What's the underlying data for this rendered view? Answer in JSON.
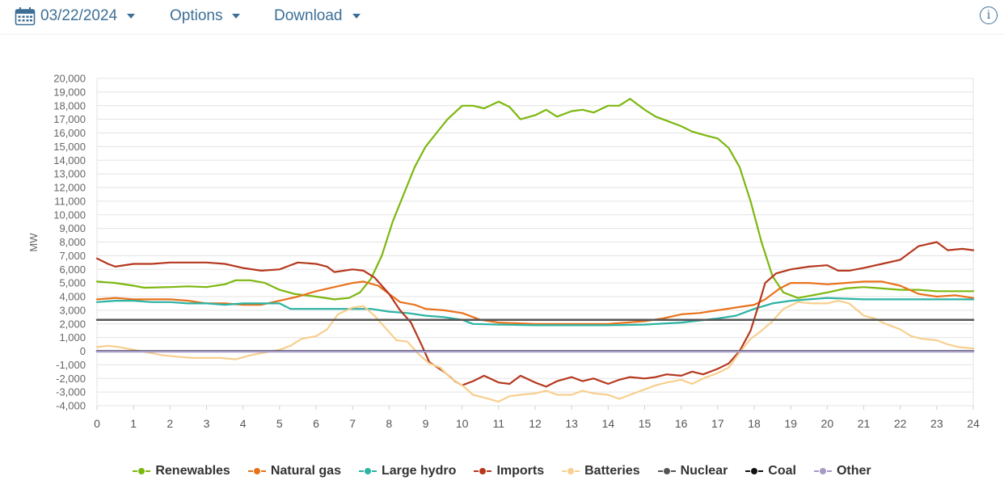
{
  "toolbar": {
    "date": "03/22/2024",
    "options_label": "Options",
    "download_label": "Download",
    "info_icon": "info-icon",
    "calendar_icon": "calendar-icon"
  },
  "chart_data": {
    "type": "line",
    "ylabel": "MW",
    "xlabel": "",
    "xlim": [
      0,
      24
    ],
    "ylim": [
      -4000,
      20000
    ],
    "x_ticks": [
      "0",
      "1",
      "2",
      "3",
      "4",
      "5",
      "6",
      "7",
      "8",
      "9",
      "10",
      "11",
      "12",
      "13",
      "14",
      "15",
      "16",
      "17",
      "18",
      "19",
      "20",
      "21",
      "22",
      "23",
      "24"
    ],
    "y_ticks": [
      "20,000",
      "19,000",
      "18,000",
      "17,000",
      "16,000",
      "15,000",
      "14,000",
      "13,000",
      "12,000",
      "11,000",
      "10,000",
      "9,000",
      "8,000",
      "7,000",
      "6,000",
      "5,000",
      "4,000",
      "3,000",
      "2,000",
      "1,000",
      "0",
      "-1,000",
      "-2,000",
      "-3,000",
      "-4,000"
    ],
    "grid": true,
    "legend_position": "bottom",
    "series": [
      {
        "name": "Renewables",
        "color": "#7cb70f",
        "points": [
          [
            0,
            5100
          ],
          [
            0.5,
            5000
          ],
          [
            1,
            4800
          ],
          [
            1.3,
            4650
          ],
          [
            2,
            4700
          ],
          [
            2.5,
            4750
          ],
          [
            3,
            4700
          ],
          [
            3.5,
            4900
          ],
          [
            3.8,
            5200
          ],
          [
            4.2,
            5200
          ],
          [
            4.6,
            5000
          ],
          [
            5,
            4500
          ],
          [
            5.4,
            4200
          ],
          [
            6,
            4000
          ],
          [
            6.5,
            3800
          ],
          [
            6.9,
            3900
          ],
          [
            7.2,
            4300
          ],
          [
            7.5,
            5300
          ],
          [
            7.8,
            7000
          ],
          [
            8.1,
            9500
          ],
          [
            8.4,
            11500
          ],
          [
            8.7,
            13500
          ],
          [
            9,
            15000
          ],
          [
            9.3,
            16000
          ],
          [
            9.6,
            17000
          ],
          [
            10,
            18000
          ],
          [
            10.3,
            18000
          ],
          [
            10.6,
            17800
          ],
          [
            11,
            18300
          ],
          [
            11.3,
            17900
          ],
          [
            11.6,
            17000
          ],
          [
            12,
            17300
          ],
          [
            12.3,
            17700
          ],
          [
            12.6,
            17200
          ],
          [
            13,
            17600
          ],
          [
            13.3,
            17700
          ],
          [
            13.6,
            17500
          ],
          [
            14,
            18000
          ],
          [
            14.3,
            18000
          ],
          [
            14.6,
            18500
          ],
          [
            15,
            17700
          ],
          [
            15.3,
            17200
          ],
          [
            15.6,
            16900
          ],
          [
            16,
            16500
          ],
          [
            16.3,
            16100
          ],
          [
            16.7,
            15800
          ],
          [
            17,
            15600
          ],
          [
            17.3,
            14900
          ],
          [
            17.6,
            13500
          ],
          [
            17.9,
            11000
          ],
          [
            18.2,
            8000
          ],
          [
            18.5,
            5500
          ],
          [
            18.8,
            4300
          ],
          [
            19.2,
            3900
          ],
          [
            19.6,
            4100
          ],
          [
            20,
            4300
          ],
          [
            20.5,
            4600
          ],
          [
            21,
            4700
          ],
          [
            21.5,
            4600
          ],
          [
            22,
            4500
          ],
          [
            22.5,
            4500
          ],
          [
            23,
            4400
          ],
          [
            23.5,
            4400
          ],
          [
            24,
            4400
          ]
        ]
      },
      {
        "name": "Natural gas",
        "color": "#e8721c",
        "points": [
          [
            0,
            3800
          ],
          [
            0.5,
            3900
          ],
          [
            1,
            3800
          ],
          [
            1.5,
            3800
          ],
          [
            2,
            3800
          ],
          [
            2.5,
            3700
          ],
          [
            3,
            3500
          ],
          [
            3.5,
            3500
          ],
          [
            4,
            3400
          ],
          [
            4.5,
            3400
          ],
          [
            5,
            3700
          ],
          [
            5.5,
            4000
          ],
          [
            6,
            4400
          ],
          [
            6.5,
            4700
          ],
          [
            7,
            5000
          ],
          [
            7.3,
            5100
          ],
          [
            7.7,
            4800
          ],
          [
            8,
            4200
          ],
          [
            8.3,
            3600
          ],
          [
            8.7,
            3400
          ],
          [
            9,
            3100
          ],
          [
            9.5,
            3000
          ],
          [
            10,
            2800
          ],
          [
            10.5,
            2300
          ],
          [
            11,
            2100
          ],
          [
            12,
            2000
          ],
          [
            13,
            2000
          ],
          [
            14,
            2000
          ],
          [
            14.5,
            2100
          ],
          [
            15,
            2200
          ],
          [
            15.5,
            2400
          ],
          [
            16,
            2700
          ],
          [
            16.5,
            2800
          ],
          [
            17,
            3000
          ],
          [
            17.5,
            3200
          ],
          [
            18,
            3400
          ],
          [
            18.3,
            3800
          ],
          [
            18.7,
            4600
          ],
          [
            19,
            5000
          ],
          [
            19.5,
            5000
          ],
          [
            20,
            4900
          ],
          [
            20.5,
            5000
          ],
          [
            21,
            5100
          ],
          [
            21.5,
            5100
          ],
          [
            22,
            4800
          ],
          [
            22.5,
            4200
          ],
          [
            23,
            4000
          ],
          [
            23.5,
            4100
          ],
          [
            24,
            3900
          ]
        ]
      },
      {
        "name": "Large hydro",
        "color": "#2bb3a3",
        "points": [
          [
            0,
            3600
          ],
          [
            0.5,
            3700
          ],
          [
            1,
            3700
          ],
          [
            1.5,
            3600
          ],
          [
            2,
            3600
          ],
          [
            2.5,
            3500
          ],
          [
            3,
            3500
          ],
          [
            3.5,
            3400
          ],
          [
            4,
            3500
          ],
          [
            4.5,
            3500
          ],
          [
            5,
            3500
          ],
          [
            5.3,
            3100
          ],
          [
            6,
            3100
          ],
          [
            6.5,
            3100
          ],
          [
            7,
            3100
          ],
          [
            7.5,
            3100
          ],
          [
            8,
            2900
          ],
          [
            8.5,
            2800
          ],
          [
            9,
            2600
          ],
          [
            9.5,
            2500
          ],
          [
            10,
            2300
          ],
          [
            10.3,
            2000
          ],
          [
            11,
            1950
          ],
          [
            12,
            1900
          ],
          [
            13,
            1900
          ],
          [
            14,
            1900
          ],
          [
            15,
            1950
          ],
          [
            16,
            2100
          ],
          [
            17,
            2400
          ],
          [
            17.5,
            2600
          ],
          [
            18,
            3100
          ],
          [
            18.5,
            3500
          ],
          [
            19,
            3700
          ],
          [
            19.5,
            3800
          ],
          [
            20,
            3900
          ],
          [
            21,
            3800
          ],
          [
            22,
            3800
          ],
          [
            23,
            3800
          ],
          [
            24,
            3800
          ]
        ]
      },
      {
        "name": "Imports",
        "color": "#b5381e",
        "points": [
          [
            0,
            6800
          ],
          [
            0.3,
            6400
          ],
          [
            0.5,
            6200
          ],
          [
            1,
            6400
          ],
          [
            1.5,
            6400
          ],
          [
            2,
            6500
          ],
          [
            2.5,
            6500
          ],
          [
            3,
            6500
          ],
          [
            3.5,
            6400
          ],
          [
            4,
            6100
          ],
          [
            4.5,
            5900
          ],
          [
            5,
            6000
          ],
          [
            5.2,
            6200
          ],
          [
            5.5,
            6500
          ],
          [
            6,
            6400
          ],
          [
            6.3,
            6200
          ],
          [
            6.5,
            5800
          ],
          [
            7,
            6000
          ],
          [
            7.3,
            5900
          ],
          [
            7.6,
            5400
          ],
          [
            8,
            4200
          ],
          [
            8.3,
            3000
          ],
          [
            8.6,
            2100
          ],
          [
            8.9,
            400
          ],
          [
            9.1,
            -800
          ],
          [
            9.5,
            -1500
          ],
          [
            9.8,
            -2200
          ],
          [
            10,
            -2500
          ],
          [
            10.3,
            -2200
          ],
          [
            10.6,
            -1800
          ],
          [
            11,
            -2300
          ],
          [
            11.3,
            -2400
          ],
          [
            11.6,
            -1800
          ],
          [
            12,
            -2300
          ],
          [
            12.3,
            -2600
          ],
          [
            12.6,
            -2200
          ],
          [
            13,
            -1900
          ],
          [
            13.3,
            -2200
          ],
          [
            13.6,
            -2000
          ],
          [
            14,
            -2400
          ],
          [
            14.3,
            -2100
          ],
          [
            14.6,
            -1900
          ],
          [
            15,
            -2000
          ],
          [
            15.3,
            -1900
          ],
          [
            15.6,
            -1700
          ],
          [
            16,
            -1800
          ],
          [
            16.3,
            -1500
          ],
          [
            16.6,
            -1700
          ],
          [
            17,
            -1300
          ],
          [
            17.3,
            -900
          ],
          [
            17.6,
            0
          ],
          [
            17.9,
            1500
          ],
          [
            18.1,
            3200
          ],
          [
            18.3,
            5000
          ],
          [
            18.6,
            5700
          ],
          [
            19,
            6000
          ],
          [
            19.5,
            6200
          ],
          [
            20,
            6300
          ],
          [
            20.3,
            5900
          ],
          [
            20.6,
            5900
          ],
          [
            21,
            6100
          ],
          [
            21.5,
            6400
          ],
          [
            22,
            6700
          ],
          [
            22.5,
            7700
          ],
          [
            23,
            8000
          ],
          [
            23.3,
            7400
          ],
          [
            23.7,
            7500
          ],
          [
            24,
            7400
          ]
        ]
      },
      {
        "name": "Batteries",
        "color": "#f7cf8e",
        "points": [
          [
            0,
            300
          ],
          [
            0.3,
            400
          ],
          [
            0.6,
            300
          ],
          [
            1,
            100
          ],
          [
            1.4,
            -100
          ],
          [
            1.8,
            -300
          ],
          [
            2.2,
            -400
          ],
          [
            2.6,
            -500
          ],
          [
            3,
            -500
          ],
          [
            3.4,
            -500
          ],
          [
            3.8,
            -600
          ],
          [
            4.2,
            -300
          ],
          [
            4.6,
            -100
          ],
          [
            5,
            100
          ],
          [
            5.3,
            400
          ],
          [
            5.6,
            900
          ],
          [
            6,
            1100
          ],
          [
            6.3,
            1600
          ],
          [
            6.6,
            2700
          ],
          [
            7,
            3200
          ],
          [
            7.3,
            3300
          ],
          [
            7.6,
            2600
          ],
          [
            7.9,
            1700
          ],
          [
            8.2,
            800
          ],
          [
            8.5,
            700
          ],
          [
            8.8,
            -200
          ],
          [
            9.1,
            -900
          ],
          [
            9.4,
            -1200
          ],
          [
            9.7,
            -2000
          ],
          [
            10,
            -2500
          ],
          [
            10.3,
            -3200
          ],
          [
            10.6,
            -3400
          ],
          [
            11,
            -3700
          ],
          [
            11.3,
            -3300
          ],
          [
            11.6,
            -3200
          ],
          [
            12,
            -3100
          ],
          [
            12.3,
            -2900
          ],
          [
            12.6,
            -3200
          ],
          [
            13,
            -3200
          ],
          [
            13.3,
            -2900
          ],
          [
            13.6,
            -3100
          ],
          [
            14,
            -3200
          ],
          [
            14.3,
            -3500
          ],
          [
            14.6,
            -3200
          ],
          [
            15,
            -2800
          ],
          [
            15.3,
            -2500
          ],
          [
            15.6,
            -2300
          ],
          [
            16,
            -2100
          ],
          [
            16.3,
            -2400
          ],
          [
            16.6,
            -2000
          ],
          [
            17,
            -1600
          ],
          [
            17.3,
            -1200
          ],
          [
            17.6,
            -100
          ],
          [
            17.9,
            900
          ],
          [
            18.2,
            1500
          ],
          [
            18.5,
            2200
          ],
          [
            18.8,
            3100
          ],
          [
            19.2,
            3600
          ],
          [
            19.6,
            3500
          ],
          [
            20,
            3500
          ],
          [
            20.3,
            3700
          ],
          [
            20.6,
            3500
          ],
          [
            21,
            2600
          ],
          [
            21.3,
            2400
          ],
          [
            21.6,
            2000
          ],
          [
            22,
            1600
          ],
          [
            22.3,
            1100
          ],
          [
            22.6,
            900
          ],
          [
            23,
            800
          ],
          [
            23.3,
            500
          ],
          [
            23.6,
            300
          ],
          [
            24,
            200
          ]
        ]
      },
      {
        "name": "Nuclear",
        "color": "#555555",
        "points": [
          [
            0,
            2300
          ],
          [
            24,
            2300
          ]
        ]
      },
      {
        "name": "Coal",
        "color": "#111111",
        "points": [
          [
            0,
            0
          ],
          [
            24,
            0
          ]
        ]
      },
      {
        "name": "Other",
        "color": "#a59ac8",
        "points": [
          [
            0,
            -30
          ],
          [
            24,
            -30
          ]
        ]
      }
    ]
  }
}
